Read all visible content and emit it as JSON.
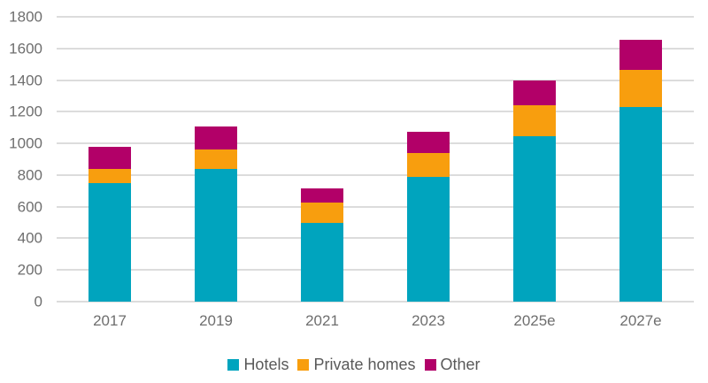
{
  "chart_data": {
    "type": "bar",
    "stacked": true,
    "title": "",
    "xlabel": "",
    "ylabel": "",
    "categories": [
      "2017",
      "2019",
      "2021",
      "2023",
      "2025e",
      "2027e"
    ],
    "series": [
      {
        "name": "Hotels",
        "color": "#00A4BE",
        "values": [
          750,
          840,
          500,
          790,
          1045,
          1230
        ]
      },
      {
        "name": "Private homes",
        "color": "#F89E0E",
        "values": [
          90,
          120,
          125,
          150,
          195,
          235
        ]
      },
      {
        "name": "Other",
        "color": "#B20068",
        "values": [
          140,
          145,
          90,
          135,
          160,
          190
        ]
      }
    ],
    "stack_totals": [
      980,
      1105,
      715,
      1075,
      1400,
      1655
    ],
    "ylim": [
      0,
      1800
    ],
    "yticks": [
      0,
      200,
      400,
      600,
      800,
      1000,
      1200,
      1400,
      1600,
      1800
    ],
    "grid": true,
    "legend_position": "bottom"
  },
  "style": {
    "grid_color": "#DCDCDC",
    "axis_text_color": "#6E6E6E",
    "legend_text_color": "#595959",
    "background": "#FFFFFF"
  }
}
